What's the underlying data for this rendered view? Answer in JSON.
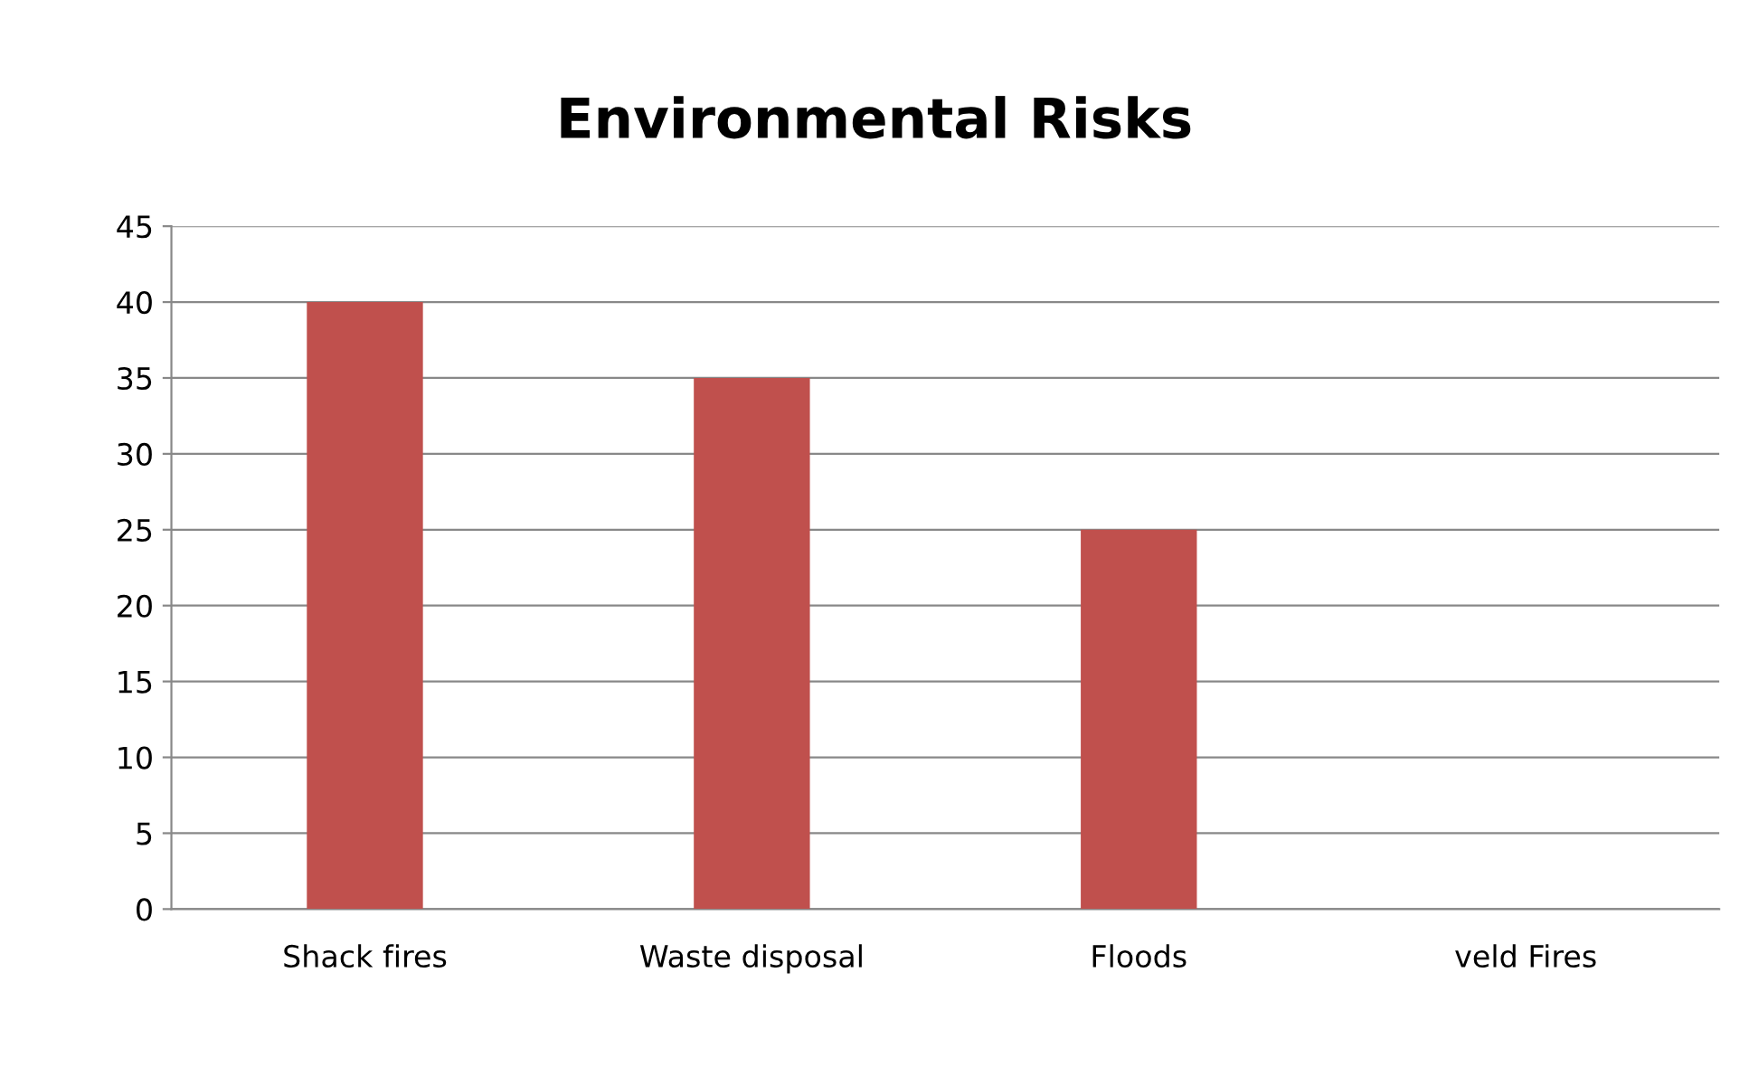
{
  "chart_data": {
    "type": "bar",
    "title": "Environmental Risks",
    "categories": [
      "Shack fires",
      "Waste disposal",
      "Floods",
      "veld Fires"
    ],
    "values": [
      40,
      35,
      25,
      0
    ],
    "color": "#c0504d",
    "ylim": [
      0,
      45
    ],
    "yticks": [
      0,
      5,
      10,
      15,
      20,
      25,
      30,
      35,
      40,
      45
    ],
    "grid": "y"
  }
}
